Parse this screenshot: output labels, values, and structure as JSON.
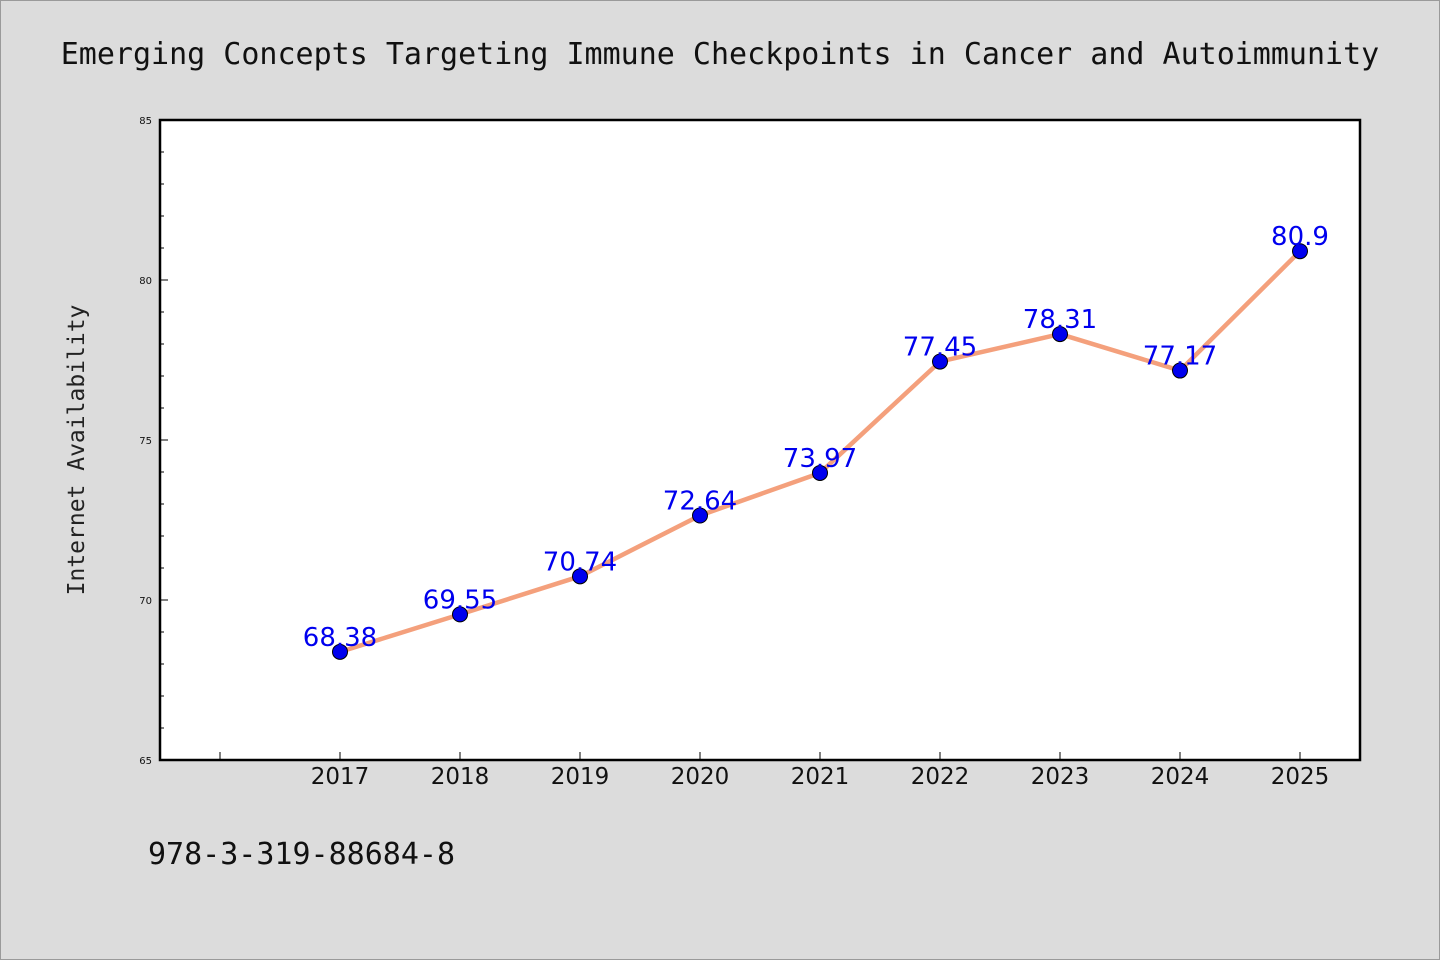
{
  "chart_data": {
    "type": "line",
    "title": "Emerging Concepts Targeting Immune Checkpoints in Cancer and Autoimmunity",
    "ylabel": "Internet Availability",
    "xlabel": "",
    "categories": [
      "2017",
      "2018",
      "2019",
      "2020",
      "2021",
      "2022",
      "2023",
      "2024",
      "2025"
    ],
    "values": [
      68.38,
      69.55,
      70.74,
      72.64,
      73.97,
      77.45,
      78.31,
      77.17,
      80.9
    ],
    "value_labels": [
      "68.38",
      "69.55",
      "70.74",
      "72.64",
      "73.97",
      "77.45",
      "78.31",
      "77.17",
      "80.9"
    ],
    "ylim": [
      65,
      85
    ],
    "yticks": [
      "65",
      "70",
      "75",
      "80",
      "85"
    ],
    "grid": false,
    "line_color": "#f4a07c",
    "marker_color": "#0000ee",
    "label_color": "#0000ee"
  },
  "footer": {
    "isbn": "978-3-319-88684-8"
  }
}
